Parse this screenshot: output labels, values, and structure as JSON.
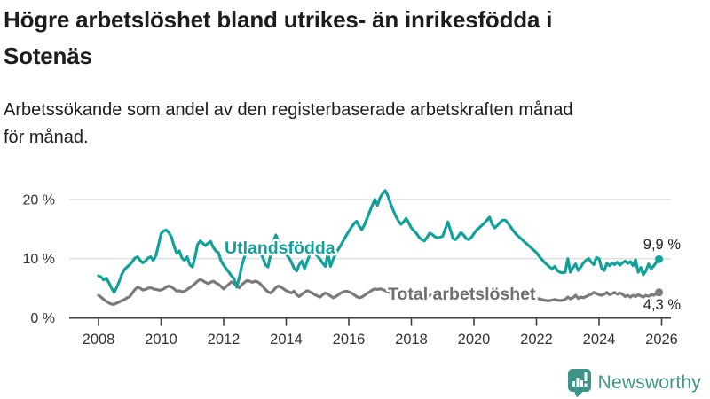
{
  "header": {
    "title_line1": "Högre arbetslöshet bland utrikes- än inrikesfödda i",
    "title_line2": "Sotenäs",
    "subtitle_line1": "Arbetssökande som andel av den registerbaserade arbetskraften månad",
    "subtitle_line2": "för månad."
  },
  "branding": {
    "logo_text": "Newsworthy",
    "logo_color": "#3e9489",
    "logo_icon": "bar-chart-speech-bubble-icon"
  },
  "chart_data": {
    "type": "line",
    "title": "Högre arbetslöshet bland utrikes- än inrikesfödda i Sotenäs",
    "subtitle": "Arbetssökande som andel av den registerbaserade arbetskraften månad för månad.",
    "x_start_year": 2008,
    "x_step_months": 1,
    "x_end": "2025-12",
    "xlim": [
      2008,
      2026.3
    ],
    "ylim": [
      0,
      22
    ],
    "grid": "horizontal",
    "legend_position": "inline-labels",
    "xticks": [
      "2008",
      "2010",
      "2012",
      "2014",
      "2016",
      "2018",
      "2020",
      "2022",
      "2024",
      "2026"
    ],
    "yticks": [
      {
        "value": 0,
        "label": "0 %"
      },
      {
        "value": 10,
        "label": "10 %"
      },
      {
        "value": 20,
        "label": "20 %"
      }
    ],
    "colors": {
      "utlandsfodda": "#12a19a",
      "total": "#7a7a7a",
      "grid": "#dedede",
      "axis": "#3f3f3f",
      "tick_text": "#333333",
      "value_label": "#222222",
      "total_label": "#6f6f6f"
    },
    "series": [
      {
        "name": "Total arbetslöshet",
        "end_label": "4,3 %",
        "end_value": 4.3,
        "values": [
          3.8,
          3.5,
          3.1,
          2.8,
          2.5,
          2.3,
          2.3,
          2.5,
          2.7,
          2.9,
          3.1,
          3.4,
          3.6,
          4.2,
          4.8,
          5.2,
          5.0,
          4.7,
          4.8,
          5.0,
          5.1,
          4.9,
          4.8,
          4.7,
          4.7,
          4.9,
          5.2,
          5.4,
          5.2,
          4.9,
          4.5,
          4.6,
          4.4,
          4.5,
          4.8,
          5.1,
          5.4,
          5.8,
          6.2,
          6.5,
          6.3,
          6.0,
          5.8,
          6.0,
          6.2,
          5.9,
          5.7,
          5.3,
          4.9,
          5.3,
          5.7,
          6.1,
          5.8,
          5.4,
          5.1,
          5.6,
          6.0,
          6.3,
          6.2,
          6.0,
          6.2,
          6.1,
          5.8,
          5.3,
          4.8,
          4.4,
          4.2,
          4.6,
          5.1,
          5.4,
          5.2,
          4.9,
          4.6,
          4.4,
          4.2,
          4.5,
          3.9,
          3.6,
          4.0,
          4.3,
          4.6,
          4.4,
          4.2,
          3.9,
          3.7,
          3.5,
          3.9,
          4.2,
          4.0,
          3.7,
          3.4,
          3.6,
          3.9,
          4.2,
          4.4,
          4.5,
          4.4,
          4.2,
          3.9,
          3.6,
          3.4,
          3.5,
          3.8,
          4.1,
          4.4,
          4.7,
          4.9,
          4.8,
          4.9,
          4.8,
          4.6,
          4.4,
          4.2,
          4.0,
          3.9,
          4.1,
          4.3,
          4.2,
          4.1,
          4.0,
          4.1,
          4.0,
          3.9,
          3.7,
          3.6,
          3.5,
          3.6,
          3.8,
          3.9,
          3.8,
          3.7,
          3.8,
          3.9,
          4.0,
          4.1,
          4.0,
          3.8,
          3.7,
          3.8,
          3.9,
          4.0,
          3.9,
          3.8,
          3.9,
          4.0,
          4.2,
          4.4,
          4.6,
          4.7,
          4.8,
          4.7,
          4.6,
          4.5,
          4.4,
          4.3,
          4.2,
          4.3,
          4.2,
          4.1,
          4.0,
          3.9,
          3.8,
          3.7,
          3.6,
          3.5,
          3.4,
          3.3,
          3.2,
          3.3,
          3.2,
          3.1,
          3.0,
          2.9,
          2.9,
          3.0,
          3.1,
          3.0,
          2.9,
          3.0,
          3.1,
          3.5,
          3.2,
          3.4,
          3.8,
          3.3,
          3.5,
          3.4,
          3.6,
          3.8,
          4.0,
          4.3,
          4.1,
          3.9,
          3.8,
          4.0,
          4.3,
          3.9,
          4.1,
          4.3,
          4.0,
          4.2,
          4.0,
          3.6,
          3.8,
          3.5,
          3.8,
          3.6,
          3.9,
          3.7,
          3.5,
          3.8,
          3.6,
          3.9,
          3.8,
          4.1,
          4.3
        ]
      },
      {
        "name": "Utlandsfödda",
        "end_label": "9,9 %",
        "end_value": 9.9,
        "values": [
          7.1,
          6.9,
          6.4,
          6.7,
          5.9,
          5.0,
          4.3,
          5.2,
          6.2,
          7.4,
          8.2,
          8.6,
          9.0,
          9.5,
          10.1,
          10.3,
          9.7,
          9.3,
          9.6,
          10.1,
          10.3,
          9.7,
          10.5,
          12.3,
          14.2,
          14.7,
          14.8,
          14.4,
          13.6,
          12.1,
          10.9,
          11.3,
          10.1,
          9.7,
          10.3,
          9.0,
          8.6,
          10.2,
          12.4,
          13.0,
          12.6,
          12.2,
          12.6,
          12.9,
          11.9,
          11.3,
          11.0,
          9.6,
          8.9,
          8.3,
          7.7,
          7.1,
          6.6,
          5.2,
          6.8,
          8.9,
          10.3,
          11.2,
          11.9,
          12.4,
          12.2,
          11.6,
          10.9,
          10.2,
          9.0,
          8.6,
          10.6,
          12.8,
          14.0,
          12.9,
          11.8,
          11.2,
          10.7,
          10.2,
          9.4,
          8.4,
          7.9,
          9.0,
          9.6,
          8.3,
          9.5,
          10.6,
          11.3,
          10.9,
          10.4,
          9.9,
          9.2,
          8.7,
          10.9,
          8.7,
          9.9,
          10.9,
          11.6,
          12.3,
          13.1,
          13.9,
          14.6,
          15.3,
          15.9,
          16.3,
          15.5,
          14.9,
          15.7,
          16.8,
          17.9,
          19.0,
          20.0,
          19.0,
          20.3,
          21.0,
          21.5,
          20.6,
          19.3,
          18.2,
          17.2,
          16.4,
          15.8,
          16.2,
          16.8,
          16.0,
          15.2,
          14.7,
          14.2,
          13.6,
          13.2,
          13.0,
          13.6,
          14.3,
          14.1,
          13.7,
          13.5,
          13.6,
          13.8,
          15.0,
          16.2,
          14.8,
          13.4,
          13.2,
          13.8,
          14.4,
          14.0,
          13.4,
          13.2,
          13.6,
          14.2,
          14.8,
          15.2,
          15.6,
          16.0,
          16.5,
          17.0,
          15.8,
          15.2,
          15.6,
          16.1,
          16.5,
          16.5,
          16.0,
          15.4,
          14.8,
          14.2,
          13.8,
          13.4,
          13.0,
          12.6,
          12.2,
          11.8,
          11.4,
          11.0,
          10.4,
          9.9,
          9.4,
          9.0,
          8.6,
          8.3,
          8.7,
          8.0,
          7.7,
          7.6,
          7.7,
          10.0,
          7.7,
          8.5,
          9.1,
          8.0,
          8.6,
          9.3,
          9.7,
          10.0,
          9.4,
          9.0,
          10.2,
          10.0,
          8.4,
          8.0,
          9.2,
          8.8,
          9.3,
          9.0,
          9.4,
          8.9,
          9.3,
          9.6,
          9.2,
          9.5,
          8.8,
          9.8,
          7.7,
          8.5,
          7.3,
          8.0,
          9.1,
          8.3,
          8.8,
          9.4,
          9.9
        ]
      }
    ]
  }
}
